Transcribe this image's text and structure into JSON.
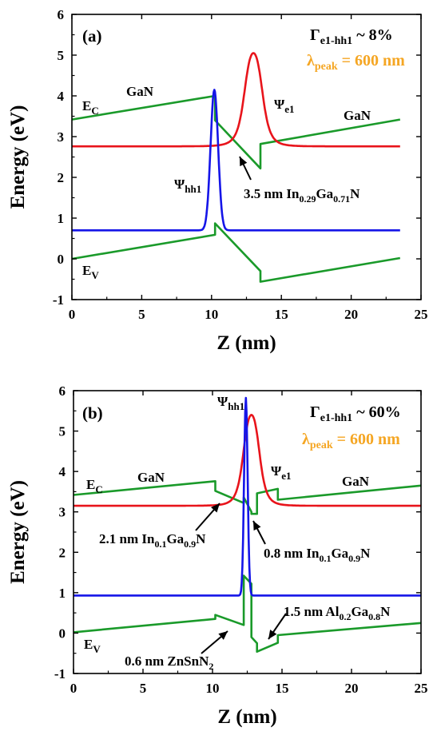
{
  "figure": {
    "colors": {
      "ec_ev": "#1a9a2a",
      "psi_e1": "#e8141b",
      "psi_hh1": "#1515e8",
      "lambda_text": "#f5a623"
    }
  },
  "chart_data": [
    {
      "type": "line",
      "panel_label": "(a)",
      "xlabel": "Z (nm)",
      "ylabel": "Energy (eV)",
      "xlim": [
        0,
        25
      ],
      "ylim": [
        -1,
        6
      ],
      "xticks": [
        "0",
        "5",
        "10",
        "15",
        "20",
        "25"
      ],
      "yticks": [
        "-1",
        "0",
        "1",
        "2",
        "3",
        "4",
        "5",
        "6"
      ],
      "grid": false,
      "annotations": {
        "gamma": {
          "main": "Γ",
          "sub": "e1-hh1",
          "rest": " ~ 8%"
        },
        "lambda": {
          "main": "λ",
          "sub": "peak",
          "rest": " = 600 nm"
        },
        "ec": {
          "main": "E",
          "sub": "C"
        },
        "ev": {
          "main": "E",
          "sub": "V"
        },
        "gan_left": "GaN",
        "gan_right": "GaN",
        "psi_e1": {
          "main": "Ψ",
          "sub": "e1"
        },
        "psi_hh1": {
          "main": "Ψ",
          "sub": "hh1"
        },
        "well": {
          "parts": [
            "3.5 nm In",
            "0.29",
            "Ga",
            "0.71",
            "N"
          ]
        }
      },
      "series": [
        {
          "key": "ec",
          "color": "#1a9a2a",
          "x": [
            0,
            10.25,
            10.25,
            13.5,
            13.5,
            23.5
          ],
          "y": [
            3.42,
            4.0,
            3.4,
            2.22,
            2.82,
            3.42
          ]
        },
        {
          "key": "ev",
          "color": "#1a9a2a",
          "x": [
            0,
            10.25,
            10.25,
            13.5,
            13.5,
            23.5
          ],
          "y": [
            0.0,
            0.59,
            0.87,
            -0.3,
            -0.56,
            0.02
          ]
        },
        {
          "key": "psi_e1",
          "color": "#e8141b",
          "type": "peak",
          "baseline": 2.76,
          "peak_x": 13.0,
          "peak_y": 5.05,
          "width": 0.72,
          "shape": "lorentzian",
          "xrange": [
            0,
            23.5
          ]
        },
        {
          "key": "psi_hh1",
          "color": "#1515e8",
          "type": "peak",
          "baseline": 0.7,
          "peak_x": 10.2,
          "peak_y": 4.15,
          "width": 0.38,
          "shape": "gaussian",
          "xrange": [
            0,
            23.5
          ]
        }
      ]
    },
    {
      "type": "line",
      "panel_label": "(b)",
      "xlabel": "Z (nm)",
      "ylabel": "Energy (eV)",
      "xlim": [
        0,
        25
      ],
      "ylim": [
        -1,
        6
      ],
      "xticks": [
        "0",
        "5",
        "10",
        "15",
        "20",
        "25"
      ],
      "yticks": [
        "-1",
        "0",
        "1",
        "2",
        "3",
        "4",
        "5",
        "6"
      ],
      "grid": false,
      "annotations": {
        "gamma": {
          "main": "Γ",
          "sub": "e1-hh1",
          "rest": " ~ 60%"
        },
        "lambda": {
          "main": "λ",
          "sub": "peak",
          "rest": " = 600 nm"
        },
        "ec": {
          "main": "E",
          "sub": "C"
        },
        "ev": {
          "main": "E",
          "sub": "V"
        },
        "gan_left": "GaN",
        "gan_right": "GaN",
        "psi_e1": {
          "main": "Ψ",
          "sub": "e1"
        },
        "psi_hh1": {
          "main": "Ψ",
          "sub": "hh1"
        },
        "well1": {
          "parts": [
            "2.1 nm In",
            "0.1",
            "Ga",
            "0.9",
            "N"
          ]
        },
        "well2": {
          "parts": [
            "0.8 nm In",
            "0.1",
            "Ga",
            "0.9",
            "N"
          ]
        },
        "barrier": {
          "parts": [
            "1.5 nm Al",
            "0.2",
            "Ga",
            "0.8",
            "N"
          ]
        },
        "znsnn": {
          "parts": [
            "0.6 nm ZnSnN",
            "2"
          ]
        }
      },
      "series": [
        {
          "key": "ec",
          "color": "#1a9a2a",
          "x": [
            0,
            10.2,
            10.2,
            12.25,
            12.25,
            12.8,
            12.8,
            13.2,
            13.2,
            14.7,
            14.7,
            25
          ],
          "y": [
            3.42,
            3.76,
            3.52,
            3.22,
            3.36,
            3.0,
            2.95,
            2.95,
            3.46,
            3.57,
            3.3,
            3.65
          ]
        },
        {
          "key": "ev",
          "color": "#1a9a2a",
          "x": [
            0,
            10.2,
            10.2,
            12.25,
            12.25,
            12.8,
            12.8,
            13.2,
            13.2,
            14.7,
            14.7,
            25
          ],
          "y": [
            0.02,
            0.35,
            0.45,
            0.2,
            1.42,
            1.22,
            -0.1,
            -0.25,
            -0.46,
            -0.24,
            -0.05,
            0.25
          ]
        },
        {
          "key": "psi_e1",
          "color": "#e8141b",
          "type": "peak",
          "baseline": 3.15,
          "peak_x": 12.8,
          "peak_y": 5.4,
          "width": 0.65,
          "shape": "lorentzian",
          "xrange": [
            0,
            25
          ]
        },
        {
          "key": "psi_hh1",
          "color": "#1515e8",
          "type": "peak",
          "baseline": 0.93,
          "peak_x": 12.4,
          "peak_y": 5.82,
          "width": 0.18,
          "shape": "gaussian",
          "xrange": [
            0,
            25
          ]
        }
      ]
    }
  ]
}
